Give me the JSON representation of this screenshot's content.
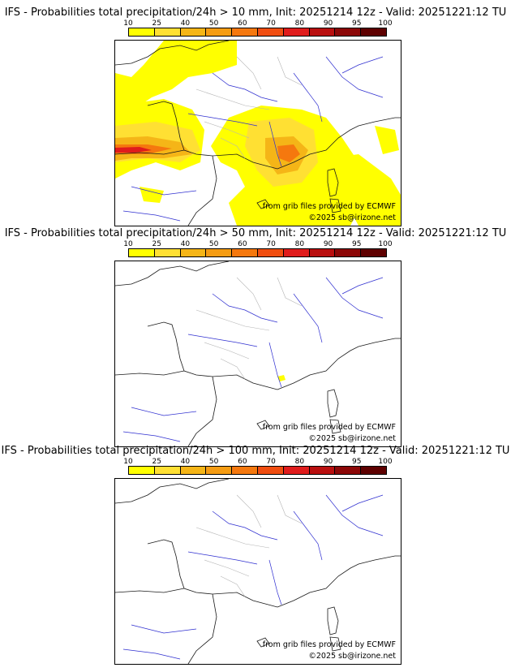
{
  "colors": {
    "bins": [
      "#ffff00",
      "#ffe033",
      "#f5b517",
      "#f59c13",
      "#f5780e",
      "#f04d10",
      "#e01c1c",
      "#b90f0f",
      "#8c0707",
      "#5e0000"
    ],
    "coast": "#1a1a1a",
    "rivers": "#2f2fd0",
    "borders": "#b4b4b4"
  },
  "scale_labels": [
    "10",
    "25",
    "40",
    "50",
    "60",
    "70",
    "80",
    "90",
    "95",
    "100"
  ],
  "credits": {
    "source": "from grib files provided by ECMWF",
    "copyright": "©2025 sb@irizone.net"
  },
  "panels": [
    {
      "title": "IFS - Probabilities total precipitation/24h > 10 mm, Init: 20251214 12z - Valid: 20251221:12 TU",
      "threshold_mm": 10,
      "precip_coverage": "wide"
    },
    {
      "title": "IFS - Probabilities total precipitation/24h > 50 mm, Init: 20251214 12z - Valid: 20251221:12 TU",
      "threshold_mm": 50,
      "precip_coverage": "tiny"
    },
    {
      "title": "IFS - Probabilities total precipitation/24h > 100 mm, Init: 20251214 12z - Valid: 20251221:12 TU",
      "threshold_mm": 100,
      "precip_coverage": "none"
    }
  ]
}
